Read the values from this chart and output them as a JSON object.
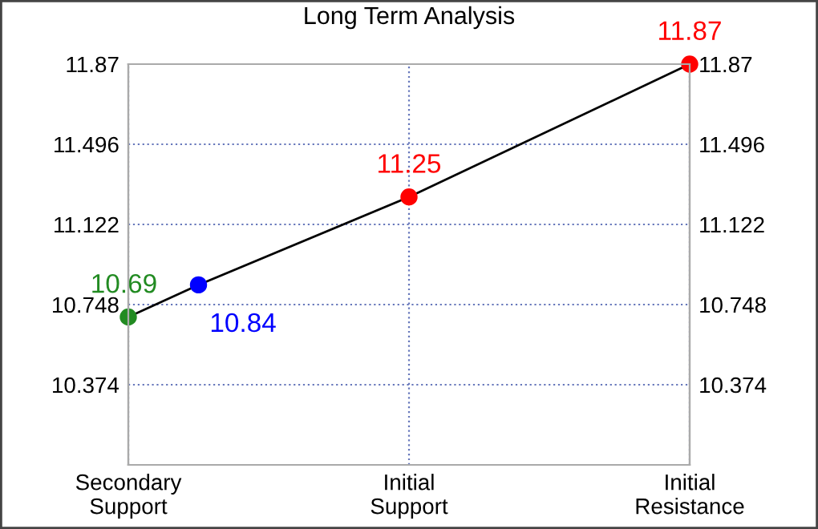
{
  "chart_data": {
    "type": "line",
    "title": "Long Term Analysis",
    "categories": [
      "Secondary\nSupport",
      null,
      null,
      null,
      "Initial\nSupport",
      null,
      null,
      null,
      "Initial\nResistance"
    ],
    "ylim": [
      10.0,
      11.87
    ],
    "yticks": [
      10.374,
      10.748,
      11.122,
      11.496,
      11.87
    ],
    "y2lim": [
      10.0,
      11.87
    ],
    "y2ticks": [
      10.374,
      10.748,
      11.122,
      11.496,
      11.87
    ],
    "series": [
      {
        "color": "#000000",
        "values": [
          10.69,
          10.84,
          null,
          null,
          11.25,
          null,
          null,
          null,
          11.87
        ],
        "colors": [
          "#228b22",
          "#0000ff",
          null,
          null,
          "#ff0000",
          null,
          null,
          null,
          "#ff0000"
        ]
      }
    ],
    "marker": "circle",
    "line_style": "solid",
    "data_labels": true,
    "grid": true
  }
}
